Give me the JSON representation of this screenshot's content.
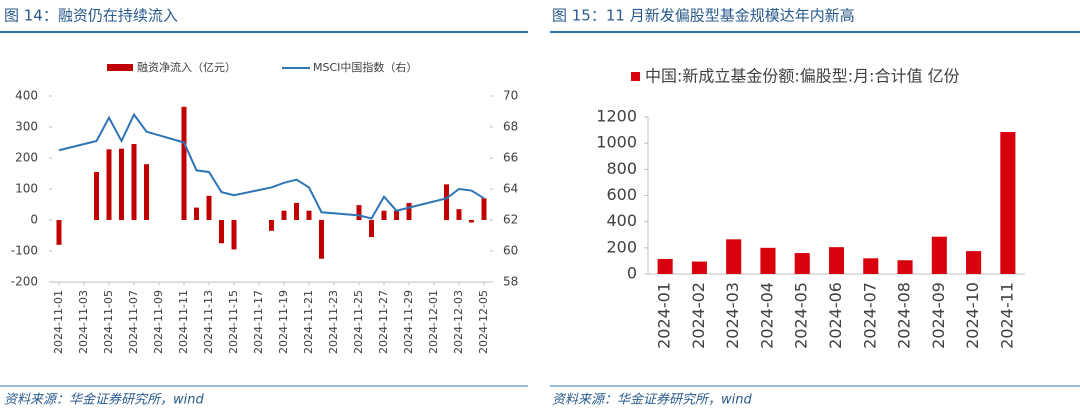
{
  "chart_data": [
    {
      "type": "combo",
      "title": "图 14：融资仍在持续流入",
      "source": "资料来源：华金证券研究所，wind",
      "x": [
        "2024-11-01",
        "2024-11-04",
        "2024-11-05",
        "2024-11-06",
        "2024-11-07",
        "2024-11-08",
        "2024-11-11",
        "2024-11-12",
        "2024-11-13",
        "2024-11-14",
        "2024-11-15",
        "2024-11-18",
        "2024-11-19",
        "2024-11-20",
        "2024-11-21",
        "2024-11-22",
        "2024-11-25",
        "2024-11-26",
        "2024-11-27",
        "2024-11-28",
        "2024-11-29",
        "2024-12-02",
        "2024-12-03",
        "2024-12-04",
        "2024-12-05"
      ],
      "xlim": [
        "2024-11-01",
        "2024-12-05"
      ],
      "xticks": [
        "2024-11-01",
        "2024-11-03",
        "2024-11-05",
        "2024-11-07",
        "2024-11-09",
        "2024-11-11",
        "2024-11-13",
        "2024-11-15",
        "2024-11-17",
        "2024-11-19",
        "2024-11-21",
        "2024-11-23",
        "2024-11-25",
        "2024-11-27",
        "2024-11-29",
        "2024-12-01",
        "2024-12-03",
        "2024-12-05"
      ],
      "series": [
        {
          "name": "融资净流入（亿元）",
          "color": "#c00000",
          "values": [
            -80,
            155,
            228,
            230,
            245,
            180,
            365,
            40,
            78,
            -75,
            -95,
            -35,
            30,
            55,
            30,
            -125,
            48,
            -55,
            30,
            30,
            55,
            115,
            35,
            -8,
            70
          ]
        },
        {
          "name": "MSCI中国指数（右）",
          "color": "#2e75b6",
          "axis": "y2",
          "values": [
            66.5,
            67.1,
            68.6,
            67.1,
            68.8,
            67.7,
            67.0,
            65.2,
            65.1,
            63.8,
            63.6,
            64.1,
            64.4,
            64.6,
            64.1,
            62.5,
            62.3,
            62.1,
            63.5,
            62.6,
            62.8,
            63.4,
            64.0,
            63.9,
            63.4
          ]
        }
      ],
      "ylim": [
        -200,
        400
      ],
      "yticks": [
        -200,
        -100,
        0,
        100,
        200,
        300,
        400
      ],
      "y2lim": [
        58,
        70
      ],
      "y2ticks": [
        58,
        60,
        62,
        64,
        66,
        68,
        70
      ]
    },
    {
      "type": "bar",
      "title": "图 15：11 月新发偏股型基金规模达年内新高",
      "source": "资料来源：华金证券研究所，wind",
      "categories": [
        "2024-01",
        "2024-02",
        "2024-03",
        "2024-04",
        "2024-05",
        "2024-06",
        "2024-07",
        "2024-08",
        "2024-09",
        "2024-10",
        "2024-11"
      ],
      "series": [
        {
          "name": "中国:新成立基金份额:偏股型:月:合计值 亿份",
          "color": "#d9000d",
          "values": [
            115,
            95,
            265,
            200,
            160,
            205,
            120,
            105,
            285,
            175,
            1085
          ]
        }
      ],
      "ylim": [
        0,
        1200
      ],
      "yticks": [
        0,
        200,
        400,
        600,
        800,
        1000,
        1200
      ]
    }
  ]
}
